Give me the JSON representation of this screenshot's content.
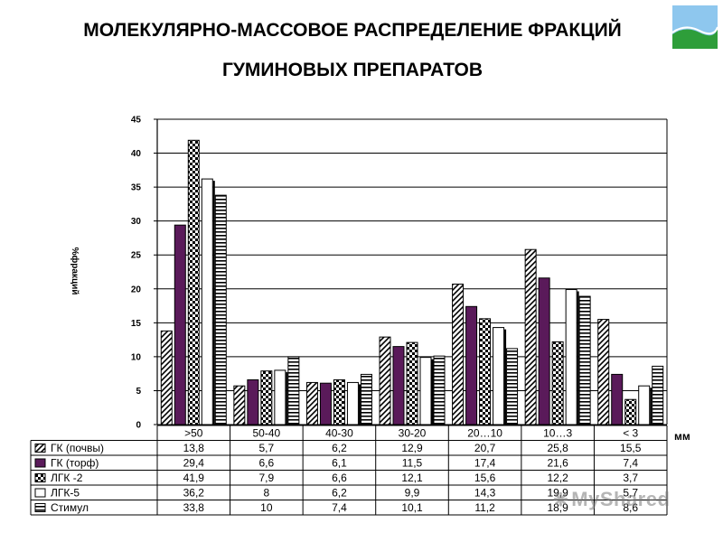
{
  "header": {
    "title_line1": "МОЛЕКУЛЯРНО-МАССОВОЕ РАСПРЕДЕЛЕНИЕ ФРАКЦИЙ",
    "title_line2": "ГУМИНОВЫХ ПРЕПАРАТОВ"
  },
  "watermark": {
    "text": "MyShared"
  },
  "colors": {
    "gk_torf": "#5a1a5a",
    "grid": "#000000",
    "logo_sky": "#8ec7ee",
    "logo_grass": "#2e9e3a"
  },
  "chart_data": {
    "type": "bar",
    "categories": [
      ">50",
      "50-40",
      "40-30",
      "30-20",
      "20…10",
      "10…3",
      "< 3"
    ],
    "ylim": [
      0,
      45
    ],
    "yticks": [
      0,
      5,
      10,
      15,
      20,
      25,
      30,
      35,
      40,
      45
    ],
    "ylabel": "%фракций",
    "xlabel": "мм",
    "grid": true,
    "series": [
      {
        "name": "ГК (почвы)",
        "pattern": "diag",
        "values": [
          13.8,
          5.7,
          6.2,
          12.9,
          20.7,
          25.8,
          15.5
        ],
        "labels": [
          "13,8",
          "5,7",
          "6,2",
          "12,9",
          "20,7",
          "25,8",
          "15,5"
        ]
      },
      {
        "name": "ГК (торф)",
        "pattern": "solid",
        "values": [
          29.4,
          6.6,
          6.1,
          11.5,
          17.4,
          21.6,
          7.4
        ],
        "labels": [
          "29,4",
          "6,6",
          "6,1",
          "11,5",
          "17,4",
          "21,6",
          "7,4"
        ]
      },
      {
        "name": "ЛГК -2",
        "pattern": "checker",
        "values": [
          41.9,
          7.9,
          6.6,
          12.1,
          15.6,
          12.2,
          3.7
        ],
        "labels": [
          "41,9",
          "7,9",
          "6,6",
          "12,1",
          "15,6",
          "12,2",
          "3,7"
        ]
      },
      {
        "name": "ЛГК-5",
        "pattern": "white",
        "values": [
          36.2,
          8,
          6.2,
          9.9,
          14.3,
          19.9,
          5.7
        ],
        "labels": [
          "36,2",
          "8",
          "6,2",
          "9,9",
          "14,3",
          "19,9",
          "5,7"
        ]
      },
      {
        "name": "Стимул",
        "pattern": "horiz",
        "values": [
          33.8,
          10,
          7.4,
          10.1,
          11.2,
          18.9,
          8.6
        ],
        "labels": [
          "33,8",
          "10",
          "7,4",
          "10,1",
          "11,2",
          "18,9",
          "8,6"
        ]
      }
    ]
  }
}
